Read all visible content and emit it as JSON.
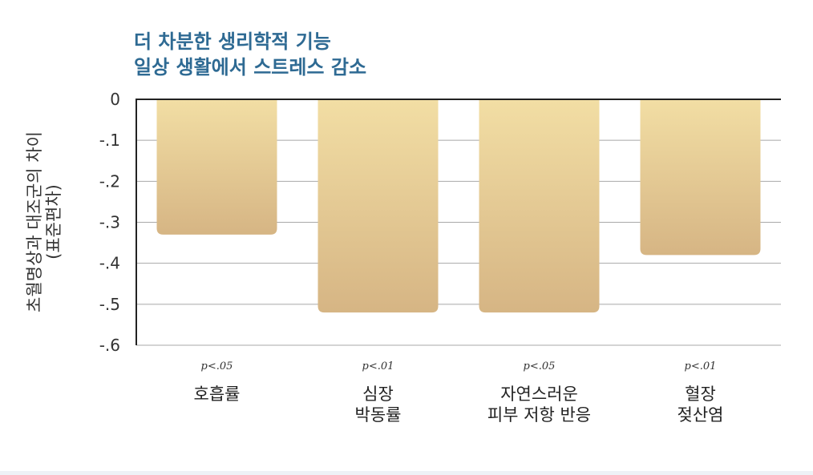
{
  "chart_data": {
    "type": "bar",
    "title_lines": [
      "더 차분한 생리학적 기능",
      "일상 생활에서 스트레스 감소"
    ],
    "ylabel_lines": [
      "초월명상과 대조군의 차이",
      "(표준편차)"
    ],
    "categories": [
      [
        "호흡률"
      ],
      [
        "심장",
        "박동률"
      ],
      [
        "자연스러운",
        "피부 저항 반응"
      ],
      [
        "혈장",
        "젖산염"
      ]
    ],
    "pvalues": [
      "p<.05",
      "p<.01",
      "p<.05",
      "p<.01"
    ],
    "values": [
      -0.33,
      -0.52,
      -0.52,
      -0.38
    ],
    "ylim": [
      -0.6,
      0
    ],
    "yticks": [
      "0",
      "-.1",
      "-.2",
      "-.3",
      "-.4",
      "-.5",
      "-.6"
    ],
    "grid": true,
    "colors": {
      "title": "#2e6a93",
      "bar_top": "#f2dea4",
      "bar_bottom": "#d6b584",
      "axis": "#222222",
      "grid": "#a8a8a8"
    }
  }
}
